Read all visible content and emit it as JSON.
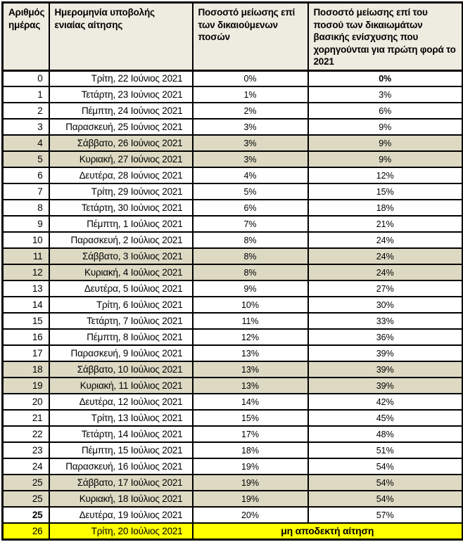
{
  "colors": {
    "header_bg": "#EEECE1",
    "weekend_row_bg": "#DDD9C3",
    "rejected_row_bg": "#FFFF00",
    "border": "#000000",
    "text": "#000000"
  },
  "table": {
    "columns": [
      {
        "label": "Αριθμός ημέρας"
      },
      {
        "label": "Ημερομηνία υποβολής ενιαίας αίτησης"
      },
      {
        "label": "Ποσοστό μείωσης επί των δικαιούμενων ποσών"
      },
      {
        "label": "Ποσοστό μείωσης επί του ποσού των δικαιωμάτων βασικής ενίσχυσης που χορηγούνται για πρώτη φορά το 2021"
      }
    ],
    "rows": [
      {
        "day": "0",
        "date": "Τρίτη, 22 Ιούνιος 2021",
        "reduction_entitled": "0%",
        "reduction_new_rights": "0%",
        "bg": "white",
        "p2_bold": true
      },
      {
        "day": "1",
        "date": "Τετάρτη, 23 Ιούνιος 2021",
        "reduction_entitled": "1%",
        "reduction_new_rights": "3%",
        "bg": "white"
      },
      {
        "day": "2",
        "date": "Πέμπτη, 24 Ιούνιος 2021",
        "reduction_entitled": "2%",
        "reduction_new_rights": "6%",
        "bg": "white"
      },
      {
        "day": "3",
        "date": "Παρασκευή, 25 Ιούνιος 2021",
        "reduction_entitled": "3%",
        "reduction_new_rights": "9%",
        "bg": "white"
      },
      {
        "day": "4",
        "date": "Σάββατο, 26 Ιούνιος 2021",
        "reduction_entitled": "3%",
        "reduction_new_rights": "9%",
        "bg": "tan"
      },
      {
        "day": "5",
        "date": "Κυριακή, 27 Ιούνιος 2021",
        "reduction_entitled": "3%",
        "reduction_new_rights": "9%",
        "bg": "tan"
      },
      {
        "day": "6",
        "date": "Δευτέρα, 28 Ιούνιος 2021",
        "reduction_entitled": "4%",
        "reduction_new_rights": "12%",
        "bg": "white"
      },
      {
        "day": "7",
        "date": "Τρίτη, 29 Ιούνιος 2021",
        "reduction_entitled": "5%",
        "reduction_new_rights": "15%",
        "bg": "white"
      },
      {
        "day": "8",
        "date": "Τετάρτη, 30 Ιούνιος 2021",
        "reduction_entitled": "6%",
        "reduction_new_rights": "18%",
        "bg": "white"
      },
      {
        "day": "9",
        "date": "Πέμπτη, 1 Ιούλιος 2021",
        "reduction_entitled": "7%",
        "reduction_new_rights": "21%",
        "bg": "white"
      },
      {
        "day": "10",
        "date": "Παρασκευή, 2 Ιούλιος 2021",
        "reduction_entitled": "8%",
        "reduction_new_rights": "24%",
        "bg": "white"
      },
      {
        "day": "11",
        "date": "Σάββατο, 3 Ιούλιος 2021",
        "reduction_entitled": "8%",
        "reduction_new_rights": "24%",
        "bg": "tan"
      },
      {
        "day": "12",
        "date": "Κυριακή, 4 Ιούλιος 2021",
        "reduction_entitled": "8%",
        "reduction_new_rights": "24%",
        "bg": "tan"
      },
      {
        "day": "13",
        "date": "Δευτέρα, 5 Ιούλιος 2021",
        "reduction_entitled": "9%",
        "reduction_new_rights": "27%",
        "bg": "white"
      },
      {
        "day": "14",
        "date": "Τρίτη, 6 Ιούλιος 2021",
        "reduction_entitled": "10%",
        "reduction_new_rights": "30%",
        "bg": "white"
      },
      {
        "day": "15",
        "date": "Τετάρτη, 7 Ιούλιος 2021",
        "reduction_entitled": "11%",
        "reduction_new_rights": "33%",
        "bg": "white"
      },
      {
        "day": "16",
        "date": "Πέμπτη, 8 Ιούλιος 2021",
        "reduction_entitled": "12%",
        "reduction_new_rights": "36%",
        "bg": "white"
      },
      {
        "day": "17",
        "date": "Παρασκευή, 9 Ιούλιος 2021",
        "reduction_entitled": "13%",
        "reduction_new_rights": "39%",
        "bg": "white"
      },
      {
        "day": "18",
        "date": "Σάββατο, 10 Ιούλιος 2021",
        "reduction_entitled": "13%",
        "reduction_new_rights": "39%",
        "bg": "tan"
      },
      {
        "day": "19",
        "date": "Κυριακή, 11 Ιούλιος 2021",
        "reduction_entitled": "13%",
        "reduction_new_rights": "39%",
        "bg": "tan"
      },
      {
        "day": "20",
        "date": "Δευτέρα, 12 Ιούλιος 2021",
        "reduction_entitled": "14%",
        "reduction_new_rights": "42%",
        "bg": "white"
      },
      {
        "day": "21",
        "date": "Τρίτη, 13 Ιούλιος 2021",
        "reduction_entitled": "15%",
        "reduction_new_rights": "45%",
        "bg": "white"
      },
      {
        "day": "22",
        "date": "Τετάρτη, 14 Ιούλιος 2021",
        "reduction_entitled": "17%",
        "reduction_new_rights": "48%",
        "bg": "white"
      },
      {
        "day": "23",
        "date": "Πέμπτη, 15 Ιούλιος 2021",
        "reduction_entitled": "18%",
        "reduction_new_rights": "51%",
        "bg": "white"
      },
      {
        "day": "24",
        "date": "Παρασκευή, 16 Ιούλιος 2021",
        "reduction_entitled": "19%",
        "reduction_new_rights": "54%",
        "bg": "white"
      },
      {
        "day": "25",
        "date": "Σάββατο, 17 Ιούλιος 2021",
        "reduction_entitled": "19%",
        "reduction_new_rights": "54%",
        "bg": "tan"
      },
      {
        "day": "25",
        "date": "Κυριακή, 18 Ιούλιος 2021",
        "reduction_entitled": "19%",
        "reduction_new_rights": "54%",
        "bg": "tan"
      },
      {
        "day": "25",
        "date": "Δευτέρα, 19 Ιούλιος 2021",
        "reduction_entitled": "20%",
        "reduction_new_rights": "57%",
        "bg": "white",
        "day_bold": true
      },
      {
        "day": "26",
        "date": "Τρίτη, 20 Ιούλιος 2021",
        "note": "μη αποδεκτή αίτηση",
        "bg": "yellow",
        "day_large": true
      }
    ]
  }
}
